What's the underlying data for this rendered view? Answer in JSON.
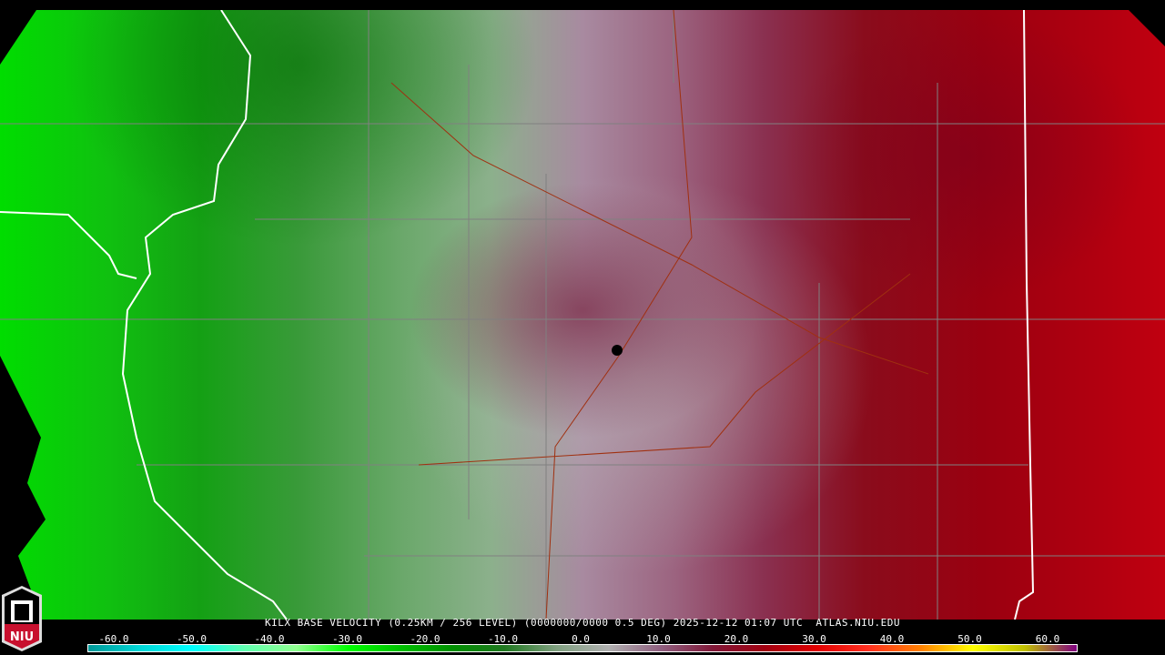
{
  "caption": "KILX BASE VELOCITY (0.25KM / 256 LEVEL) (0000000/0000 0.5 DEG) 2025-12-12 01:07 UTC  ATLAS.NIU.EDU",
  "logo_text": "NIU",
  "colorbar": {
    "ticks": [
      "-60.0",
      "-50.0",
      "-40.0",
      "-30.0",
      "-20.0",
      "-10.0",
      "0.0",
      "10.0",
      "20.0",
      "30.0",
      "40.0",
      "50.0",
      "60.0"
    ],
    "range": [
      -64,
      64
    ],
    "colors": [
      "#009898",
      "#00d8d8",
      "#00ffff",
      "#60ffb0",
      "#90ff90",
      "#00ff00",
      "#00c000",
      "#009000",
      "#207820",
      "#80a080",
      "#b0b0b0",
      "#906080",
      "#801838",
      "#a00010",
      "#e00000",
      "#ff3020",
      "#ff8000",
      "#ffff00",
      "#c0c000",
      "#800080"
    ]
  },
  "radar_site": "KILX"
}
